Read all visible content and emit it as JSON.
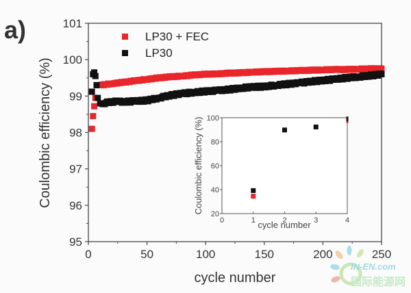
{
  "chart_data": [
    {
      "type": "scatter",
      "panel_label": "a)",
      "xlabel": "cycle number",
      "ylabel": "Coulombic efficiency (%)",
      "xlim": [
        0,
        250
      ],
      "ylim": [
        95,
        101
      ],
      "xticks": [
        "0",
        "50",
        "100",
        "150",
        "200",
        "250"
      ],
      "yticks": [
        "95",
        "96",
        "97",
        "98",
        "99",
        "100",
        "101"
      ],
      "grid": false,
      "legend_position": "top-left",
      "series": [
        {
          "name": "LP30 + FEC",
          "color": "#e8262b",
          "x": [
            3,
            4,
            5,
            6,
            8,
            10,
            15,
            20,
            30,
            40,
            50,
            60,
            70,
            80,
            90,
            100,
            110,
            120,
            130,
            140,
            150,
            160,
            170,
            180,
            190,
            200,
            210,
            220,
            230,
            240,
            250
          ],
          "y": [
            98.1,
            98.45,
            98.72,
            98.95,
            99.3,
            99.3,
            99.32,
            99.34,
            99.38,
            99.42,
            99.46,
            99.5,
            99.53,
            99.55,
            99.58,
            99.6,
            99.61,
            99.63,
            99.64,
            99.66,
            99.67,
            99.68,
            99.69,
            99.7,
            99.71,
            99.72,
            99.73,
            99.73,
            99.74,
            99.75,
            99.75
          ]
        },
        {
          "name": "LP30",
          "color": "#111111",
          "x": [
            3,
            4,
            5,
            6,
            7,
            8,
            10,
            12,
            15,
            20,
            25,
            30,
            40,
            50,
            60,
            70,
            80,
            90,
            100,
            110,
            120,
            130,
            140,
            150,
            160,
            170,
            180,
            190,
            200,
            210,
            220,
            230,
            240,
            250
          ],
          "y": [
            99.12,
            99.6,
            99.65,
            99.55,
            99.3,
            98.95,
            98.8,
            98.78,
            98.82,
            98.84,
            98.85,
            98.84,
            98.86,
            98.88,
            98.95,
            99.02,
            99.07,
            99.1,
            99.13,
            99.15,
            99.18,
            99.22,
            99.25,
            99.26,
            99.3,
            99.33,
            99.36,
            99.4,
            99.43,
            99.46,
            99.5,
            99.53,
            99.56,
            99.6
          ]
        }
      ]
    },
    {
      "type": "scatter",
      "title": "inset",
      "xlabel": "cycle number",
      "ylabel": "Coulombic efficiency (%)",
      "xlim": [
        0,
        4
      ],
      "ylim": [
        20,
        100
      ],
      "xticks": [
        "0",
        "1",
        "2",
        "3",
        "4"
      ],
      "yticks": [
        "20",
        "40",
        "60",
        "80",
        "100"
      ],
      "grid": false,
      "series": [
        {
          "name": "LP30 + FEC",
          "color": "#e8262b",
          "x": [
            1,
            4
          ],
          "y": [
            34.5,
            97.5
          ]
        },
        {
          "name": "LP30",
          "color": "#111111",
          "x": [
            1,
            2,
            3,
            4
          ],
          "y": [
            39.2,
            89.8,
            92.3,
            99.0
          ]
        }
      ]
    }
  ],
  "watermark": {
    "line1": "IN-EN.com",
    "line2": "国际能源网"
  }
}
